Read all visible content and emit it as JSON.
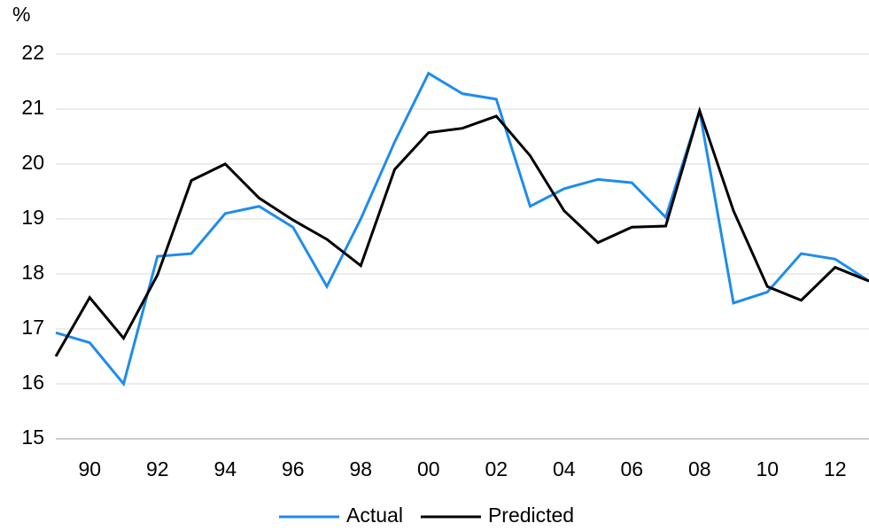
{
  "chart_data": {
    "type": "line",
    "y_unit": "%",
    "categories": [
      null,
      "90",
      null,
      "92",
      null,
      "94",
      null,
      "96",
      null,
      "98",
      null,
      "00",
      null,
      "02",
      null,
      "04",
      null,
      "06",
      null,
      "08",
      null,
      "10",
      null,
      "12",
      null
    ],
    "series": [
      {
        "name": "Actual",
        "color": "#1e8ced",
        "values": [
          16.93,
          16.75,
          16.0,
          18.32,
          18.37,
          19.1,
          19.23,
          18.85,
          17.77,
          19.0,
          20.4,
          21.65,
          21.28,
          21.18,
          19.23,
          19.55,
          19.72,
          19.66,
          19.03,
          20.97,
          17.47,
          17.67,
          18.37,
          18.27,
          17.87
        ]
      },
      {
        "name": "Predicted",
        "color": "#000000",
        "values": [
          16.5,
          17.57,
          16.83,
          17.98,
          19.7,
          20.0,
          19.38,
          18.98,
          18.63,
          18.15,
          19.9,
          20.57,
          20.65,
          20.87,
          20.15,
          19.15,
          18.57,
          18.85,
          18.87,
          20.97,
          19.15,
          17.77,
          17.52,
          18.12,
          17.87
        ]
      }
    ],
    "ylim": [
      15,
      22
    ],
    "yticks": [
      15,
      16,
      17,
      18,
      19,
      20,
      21,
      22
    ],
    "grid": true,
    "legend": "bottom"
  }
}
